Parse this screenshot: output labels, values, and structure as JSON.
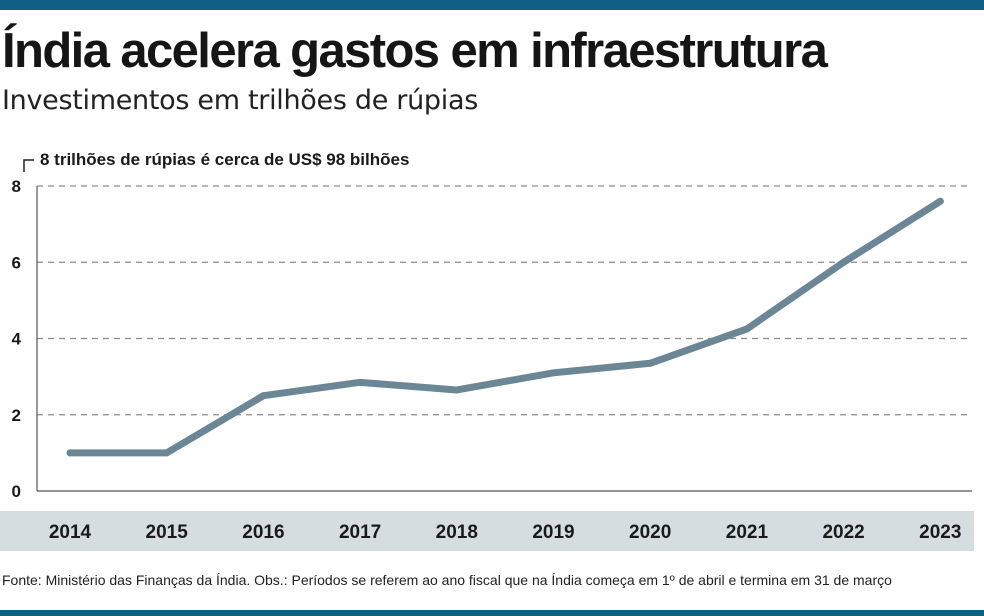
{
  "title": "Índia acelera gastos em infraestrutura",
  "subtitle": "Investimentos em trilhões de rúpias",
  "chart_data": {
    "type": "line",
    "title": "Índia acelera gastos em infraestrutura",
    "subtitle": "Investimentos em trilhões de rúpias",
    "unit_note": "8 trilhões de rúpias é cerca de US$ 98 bilhões",
    "x": [
      "2014",
      "2015",
      "2016",
      "2017",
      "2018",
      "2019",
      "2020",
      "2021",
      "2022",
      "2023"
    ],
    "y": [
      1.0,
      1.0,
      2.5,
      2.85,
      2.65,
      3.1,
      3.35,
      4.25,
      6.0,
      7.6
    ],
    "yticks": [
      "0",
      "2",
      "4",
      "6",
      "8"
    ],
    "ylim": [
      0,
      8
    ],
    "grid": "horizontal dashed",
    "colors": {
      "line": "#6b8795",
      "axis_band": "#d6dde1",
      "grid": "#8a8a8a",
      "accent_bar": "#0f5f86"
    }
  },
  "source": "Fonte: Ministério das Finanças da Índia. Obs.: Períodos se referem ao ano fiscal que na Índia começa em 1º de abril e termina em 31 de março"
}
